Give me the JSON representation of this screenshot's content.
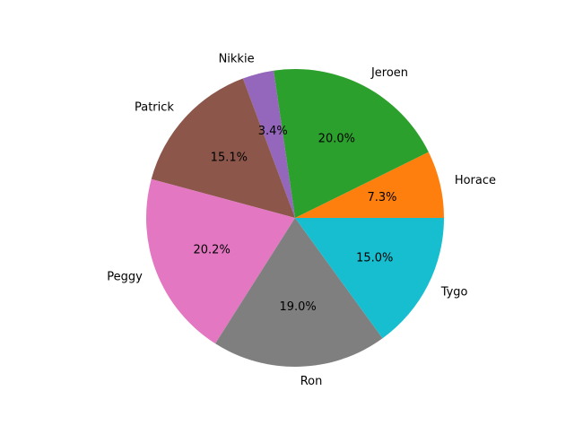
{
  "chart_data": {
    "type": "pie",
    "title": "",
    "start_angle_deg": 0,
    "direction": "counterclockwise",
    "slices": [
      {
        "label": "Horace",
        "value": 7.3,
        "display": "7.3%",
        "color": "#ff7f0e"
      },
      {
        "label": "Jeroen",
        "value": 20.0,
        "display": "20.0%",
        "color": "#2ca02c"
      },
      {
        "label": "Nikkie",
        "value": 3.4,
        "display": "3.4%",
        "color": "#9467bd"
      },
      {
        "label": "Patrick",
        "value": 15.1,
        "display": "15.1%",
        "color": "#8c564b"
      },
      {
        "label": "Peggy",
        "value": 20.2,
        "display": "20.2%",
        "color": "#e377c2"
      },
      {
        "label": "Ron",
        "value": 19.0,
        "display": "19.0%",
        "color": "#7f7f7f"
      },
      {
        "label": "Tygo",
        "value": 15.0,
        "display": "15.0%",
        "color": "#17becf"
      }
    ]
  }
}
